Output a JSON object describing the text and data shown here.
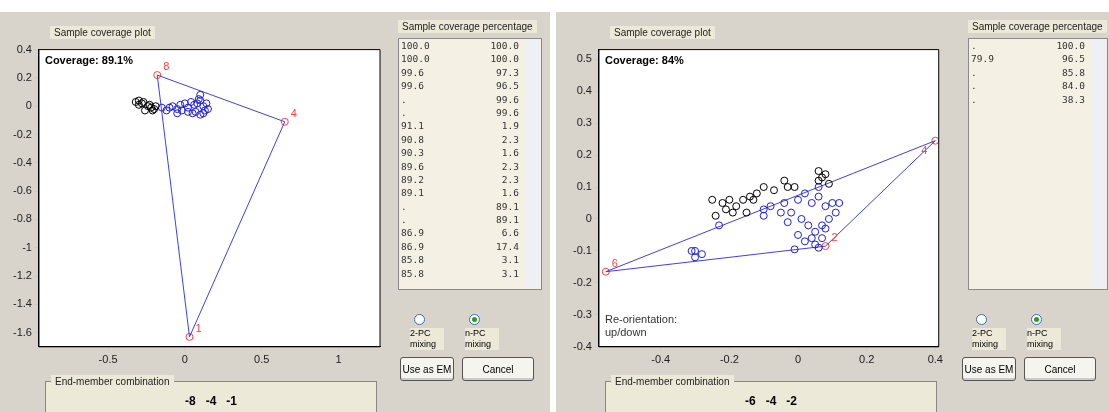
{
  "chart_data": [
    {
      "type": "scatter",
      "title": "Sample coverage plot",
      "subtitle": "End-member combination",
      "xlim": [
        -0.95,
        1.27
      ],
      "ylim": [
        -1.7,
        0.4
      ],
      "xticks": [
        -0.5,
        0,
        0.5,
        1
      ],
      "yticks": [
        -1.6,
        -1.4,
        -1.2,
        -1,
        -0.8,
        -0.6,
        -0.4,
        -0.2,
        0,
        0.2,
        0.4
      ],
      "grid": false,
      "legend": false,
      "marker": "circle",
      "annotations": [
        "Coverage: 89.1%",
        {
          "text": "8",
          "x": -0.18,
          "y": 0.22
        },
        {
          "text": "4",
          "x": 0.65,
          "y": -0.11
        },
        {
          "text": "1",
          "x": 0.03,
          "y": -1.63
        },
        "-8   -4   -1"
      ],
      "series": [
        {
          "type": "scatter",
          "color": "#000000",
          "x": [
            -0.3,
            -0.32,
            -0.28,
            -0.3,
            -0.26,
            -0.24,
            -0.22,
            -0.2,
            -0.23,
            -0.21,
            -0.27,
            -0.19
          ],
          "values": [
            0.04,
            0.03,
            0.02,
            0.01,
            -0.03,
            0,
            -0.01,
            -0.02,
            0.01,
            -0.03,
            0.03,
            0
          ]
        },
        {
          "type": "scatter",
          "color": "#1f1fd6",
          "x": [
            -0.15,
            -0.12,
            -0.1,
            -0.08,
            -0.05,
            -0.03,
            0,
            0.02,
            0.04,
            0.06,
            0.08,
            0.1,
            0.12,
            0.13,
            0.12,
            0.1,
            0.07,
            0.05,
            0.02,
            -0.02,
            0.09,
            0.1,
            0.14,
            0.15,
            -0.05
          ],
          "values": [
            -0.01,
            -0.03,
            -0.01,
            0,
            -0.02,
            0.01,
            0.02,
            -0.01,
            0.03,
            0.01,
            0.02,
            0.04,
            0,
            -0.03,
            -0.05,
            -0.06,
            -0.04,
            -0.05,
            -0.04,
            -0.03,
            0.05,
            0.08,
            0.02,
            -0.02,
            -0.05
          ]
        },
        {
          "type": "line",
          "color": "#4040e0",
          "marker": "none",
          "x": [
            -0.18,
            0.65
          ],
          "values": [
            0.22,
            -0.11
          ]
        },
        {
          "type": "line",
          "color": "#4040e0",
          "marker": "none",
          "x": [
            0.03,
            0.65
          ],
          "values": [
            -1.63,
            -0.11
          ]
        },
        {
          "type": "line",
          "color": "#4040e0",
          "marker": "none",
          "x": [
            -0.18,
            0.03
          ],
          "values": [
            0.22,
            -1.63
          ]
        },
        {
          "type": "scatter",
          "color": "#ff4040",
          "x": [
            -0.18,
            0.65,
            0.03
          ],
          "values": [
            0.22,
            -0.11,
            -1.63
          ]
        }
      ]
    },
    {
      "type": "other",
      "title": "Sample coverage percentage",
      "annotations": [
        "100.0 100.0",
        "100.0 100.0",
        "99.6 97.3",
        "99.6 96.5",
        ". 99.6",
        ". 99.6",
        "91.1 1.9",
        "90.8 2.3",
        "90.3 1.6",
        "89.6 2.3",
        "89.2 2.3",
        "89.1 1.6",
        ". 89.1",
        ". 89.1",
        "86.9 6.6",
        "86.9 17.4",
        "85.8 3.1",
        "85.8 3.1"
      ]
    },
    {
      "type": "other",
      "annotations": [
        "2-PC mixing",
        "n-PC mixing",
        "Use as EM",
        "Cancel"
      ]
    },
    {
      "type": "scatter",
      "title": "Sample coverage plot",
      "subtitle": "End-member combination",
      "xlim": [
        -0.58,
        0.41
      ],
      "ylim": [
        -0.4,
        0.53
      ],
      "xticks": [
        -0.4,
        -0.2,
        0,
        0.2,
        0.4
      ],
      "yticks": [
        -0.4,
        -0.3,
        -0.2,
        -0.1,
        0,
        0.1,
        0.2,
        0.3,
        0.4,
        0.5
      ],
      "grid": false,
      "legend": false,
      "marker": "circle",
      "annotations": [
        "Coverage: 84%",
        "Re-orientation: up/down",
        {
          "text": "6",
          "x": -0.56,
          "y": -0.165
        },
        {
          "text": "4",
          "x": 0.4,
          "y": 0.245
        },
        {
          "text": "2",
          "x": 0.08,
          "y": -0.085
        },
        "-6   -4   -2"
      ],
      "series": [
        {
          "type": "scatter",
          "color": "#000000",
          "x": [
            -0.25,
            -0.22,
            -0.21,
            -0.2,
            -0.18,
            -0.24,
            -0.19,
            -0.16,
            -0.14,
            -0.12,
            -0.1,
            -0.07,
            -0.04,
            -0.03,
            -0.01,
            0.06,
            0.07,
            0.08,
            0.06,
            0.09,
            -0.15,
            -0.13
          ],
          "values": [
            0.06,
            0.05,
            0.03,
            0.06,
            0.04,
            0.01,
            0.02,
            0.06,
            0.07,
            0.08,
            0.1,
            0.09,
            0.12,
            0.1,
            0.1,
            0.15,
            0.13,
            0.14,
            0.12,
            0.11,
            0.02,
            0.06
          ]
        },
        {
          "type": "scatter",
          "color": "#1f1fd6",
          "x": [
            -0.04,
            -0.02,
            0,
            0.02,
            0.04,
            0.06,
            0.08,
            0.1,
            0.12,
            0.11,
            0.09,
            0.07,
            0.05,
            0.03,
            0.01,
            -0.03,
            -0.05,
            0,
            0.02,
            0.05,
            0.07,
            0.08,
            0.06,
            0.04,
            0.06,
            -0.01,
            -0.1,
            -0.1,
            -0.08,
            -0.3,
            -0.31,
            -0.3,
            -0.28,
            -0.23
          ],
          "values": [
            0.05,
            0.02,
            0.06,
            0.08,
            0.05,
            0.07,
            0.04,
            0.05,
            0.05,
            0.02,
            0,
            -0.02,
            -0.04,
            -0.02,
            0,
            -0.01,
            0.02,
            -0.05,
            -0.07,
            -0.08,
            -0.06,
            -0.03,
            -0.09,
            -0.06,
            0.1,
            -0.095,
            0.01,
            0.03,
            0.04,
            -0.1,
            -0.1,
            -0.12,
            -0.11,
            -0.02
          ]
        },
        {
          "type": "line",
          "color": "#4040e0",
          "marker": "none",
          "x": [
            -0.56,
            0.4
          ],
          "values": [
            -0.165,
            0.245
          ]
        },
        {
          "type": "line",
          "color": "#4040e0",
          "marker": "none",
          "x": [
            0.08,
            0.4
          ],
          "values": [
            -0.085,
            0.245
          ]
        },
        {
          "type": "line",
          "color": "#4040e0",
          "marker": "none",
          "x": [
            -0.56,
            0.08
          ],
          "values": [
            -0.165,
            -0.085
          ]
        },
        {
          "type": "scatter",
          "color": "#ff4040",
          "x": [
            -0.56,
            0.4,
            0.08
          ],
          "values": [
            -0.165,
            0.245,
            -0.085
          ]
        }
      ]
    },
    {
      "type": "other",
      "title": "Sample coverage percentage",
      "annotations": [
        ". 100.0",
        "79.9 96.5",
        ". 85.8",
        ". 84.0",
        ". 38.3"
      ]
    },
    {
      "type": "other",
      "annotations": [
        "2-PC mixing",
        "n-PC mixing",
        "Use as EM",
        "Cancel"
      ]
    }
  ]
}
